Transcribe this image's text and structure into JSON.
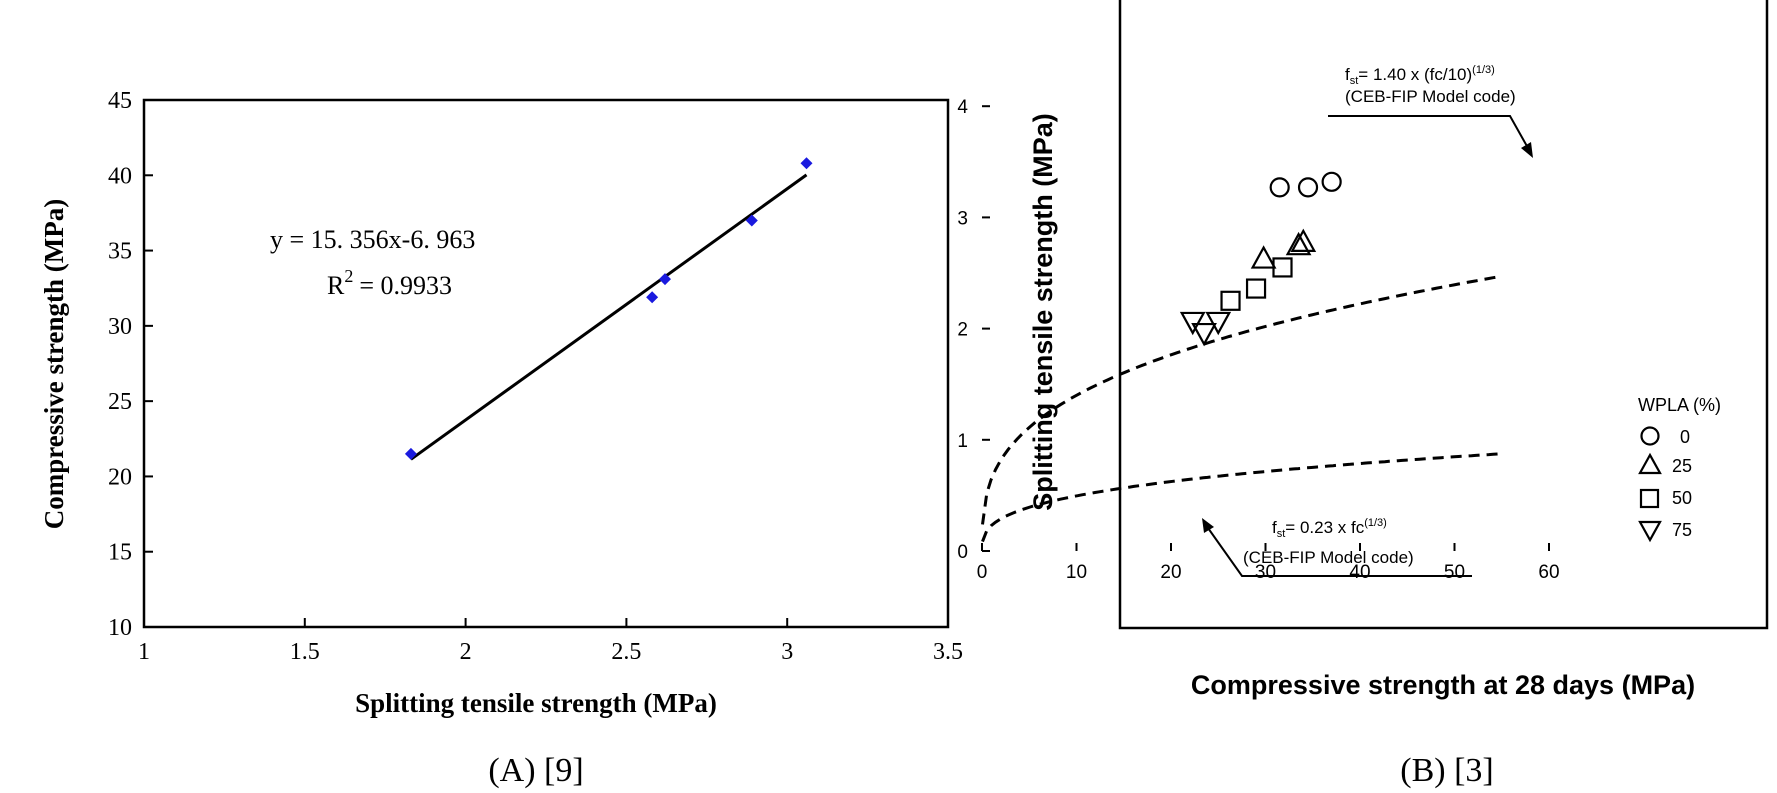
{
  "chart_data": [
    {
      "type": "scatter",
      "panel_label": "(A) [9]",
      "xlabel": "Splitting tensile strength (MPa)",
      "ylabel": "Compressive strength (MPa)",
      "xlim": [
        1,
        3.5
      ],
      "ylim": [
        10,
        45
      ],
      "xticks": [
        "1",
        "1.5",
        "2",
        "2.5",
        "3",
        "3.5"
      ],
      "yticks": [
        "10",
        "15",
        "20",
        "25",
        "30",
        "35",
        "40",
        "45"
      ],
      "grid": false,
      "points": [
        {
          "x": 1.83,
          "y": 21.5
        },
        {
          "x": 2.58,
          "y": 31.9
        },
        {
          "x": 2.62,
          "y": 33.1
        },
        {
          "x": 2.89,
          "y": 37.0
        },
        {
          "x": 3.06,
          "y": 40.8
        }
      ],
      "fit": {
        "slope": 15.356,
        "intercept": -6.963,
        "x_range": [
          1.83,
          3.06
        ]
      },
      "annotation_eq": "y = 15. 356x-6. 963",
      "annotation_r2_prefix": "R",
      "annotation_r2_exp": "2",
      "annotation_r2_value": "= 0.9933",
      "marker_color": "#1a1adf"
    },
    {
      "type": "scatter",
      "panel_label": "(B) [3]",
      "xlabel": "Compressive strength at 28 days (MPa)",
      "ylabel": "Splitting tensile strength (MPa)",
      "xlim": [
        0,
        60
      ],
      "ylim": [
        0,
        5
      ],
      "xticks": [
        "0",
        "10",
        "20",
        "30",
        "40",
        "50",
        "60"
      ],
      "yticks": [
        "0",
        "1",
        "2",
        "3",
        "4"
      ],
      "grid": false,
      "legend_title": "WPLA (%)",
      "series": [
        {
          "name": "0",
          "marker": "circle",
          "points": [
            {
              "x": 31.5,
              "y": 3.27
            },
            {
              "x": 34.5,
              "y": 3.27
            },
            {
              "x": 37.0,
              "y": 3.32
            }
          ]
        },
        {
          "name": "25",
          "marker": "triangle-up",
          "points": [
            {
              "x": 29.8,
              "y": 2.63
            },
            {
              "x": 33.5,
              "y": 2.75
            },
            {
              "x": 34.0,
              "y": 2.78
            }
          ]
        },
        {
          "name": "50",
          "marker": "square",
          "points": [
            {
              "x": 26.3,
              "y": 2.25
            },
            {
              "x": 29.0,
              "y": 2.36
            },
            {
              "x": 31.8,
              "y": 2.55
            }
          ]
        },
        {
          "name": "75",
          "marker": "triangle-down",
          "points": [
            {
              "x": 22.3,
              "y": 2.06
            },
            {
              "x": 23.5,
              "y": 1.96
            },
            {
              "x": 25.0,
              "y": 2.06
            }
          ]
        }
      ],
      "curves": [
        {
          "formula_type": "upper",
          "coef": 1.4,
          "label_line1_main": "f",
          "label_line1_sub": "st",
          "label_line1_rest": "= 1.40 x (fc/10)",
          "label_line1_sup": "(1/3)",
          "label_line2": "(CEB-FIP Model code)"
        },
        {
          "formula_type": "lower",
          "coef": 0.23,
          "label_line1_main": "f",
          "label_line1_sub": "st",
          "label_line1_rest": "= 0.23 x fc",
          "label_line1_sup": "(1/3)",
          "label_line2": "(CEB-FIP Model code)"
        }
      ]
    }
  ]
}
